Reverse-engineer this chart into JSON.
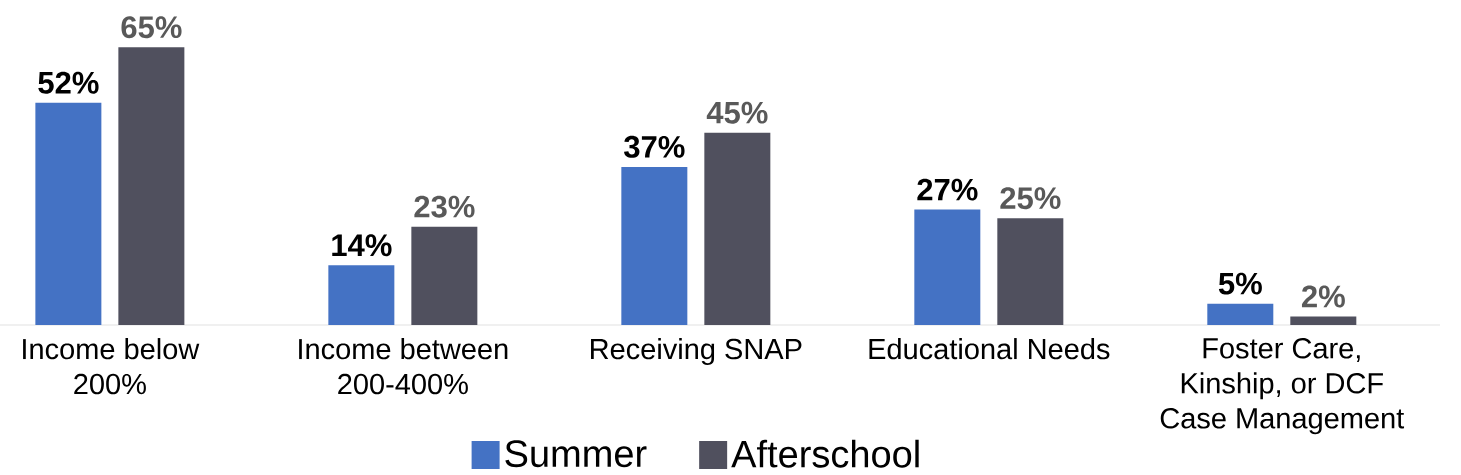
{
  "chart_data": {
    "type": "bar",
    "categories": [
      "Income below 200%",
      "Income between 200-400%",
      "Receiving SNAP",
      "Educational Needs",
      "Foster Care, Kinship, or DCF Case Management"
    ],
    "series": [
      {
        "name": "Summer",
        "color": "#4472c4",
        "values": [
          52,
          14,
          37,
          27,
          5
        ],
        "value_labels": [
          "52%",
          "14%",
          "37%",
          "27%",
          "5%"
        ]
      },
      {
        "name": "Afterschool",
        "color": "#50505e",
        "values": [
          65,
          23,
          45,
          25,
          2
        ],
        "value_labels": [
          "65%",
          "23%",
          "45%",
          "25%",
          "2%"
        ]
      }
    ],
    "legend": "bottom"
  }
}
